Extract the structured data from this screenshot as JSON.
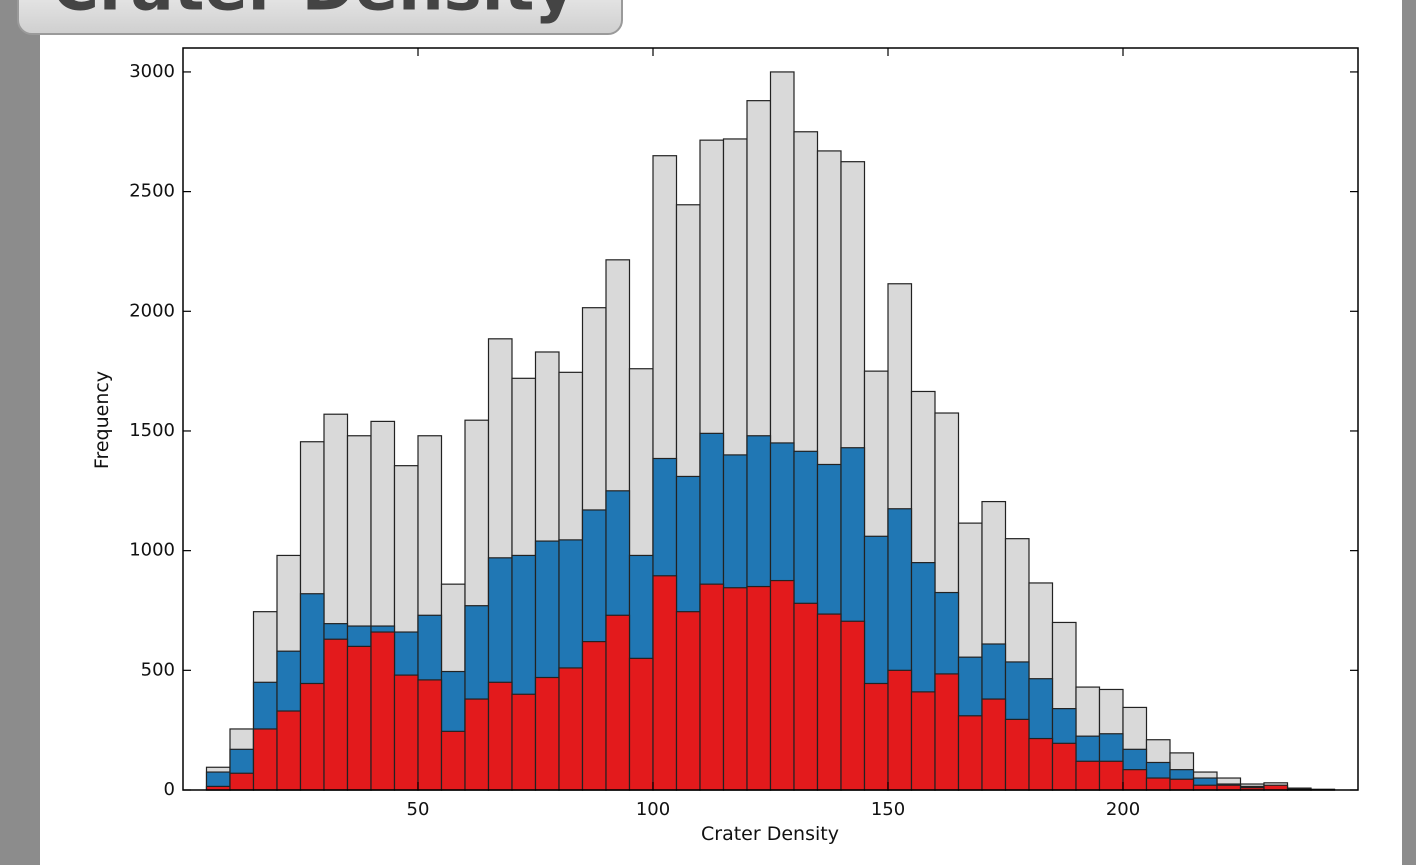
{
  "chart_data": {
    "type": "histogram",
    "title": "Crater Density",
    "xlabel": "Crater Density",
    "ylabel": "Frequency",
    "bins": [
      5,
      10,
      15,
      20,
      25,
      30,
      35,
      40,
      45,
      50,
      55,
      60,
      65,
      70,
      75,
      80,
      85,
      90,
      95,
      100,
      105,
      110,
      115,
      120,
      125,
      130,
      135,
      140,
      145,
      150,
      155,
      160,
      165,
      170,
      175,
      180,
      185,
      190,
      195,
      200,
      205,
      210,
      215,
      220,
      225,
      230,
      235,
      240,
      245
    ],
    "series": [
      {
        "color": "#d9d9d9",
        "values": [
          95,
          255,
          745,
          980,
          1455,
          1570,
          1480,
          1540,
          1355,
          1480,
          860,
          1545,
          1885,
          1720,
          1830,
          1745,
          2015,
          2215,
          1760,
          2650,
          2445,
          2715,
          2720,
          2880,
          3000,
          2750,
          2670,
          2625,
          1750,
          2115,
          1665,
          1575,
          1115,
          1205,
          1050,
          865,
          700,
          430,
          420,
          345,
          210,
          155,
          75,
          50,
          25,
          30,
          8,
          3
        ]
      },
      {
        "color": "#2077b4",
        "values": [
          75,
          170,
          450,
          580,
          820,
          695,
          685,
          685,
          660,
          730,
          495,
          770,
          970,
          980,
          1040,
          1045,
          1170,
          1250,
          980,
          1385,
          1310,
          1490,
          1400,
          1480,
          1450,
          1415,
          1360,
          1430,
          1060,
          1175,
          950,
          825,
          555,
          610,
          535,
          465,
          340,
          225,
          235,
          170,
          115,
          85,
          50,
          25,
          15,
          15,
          5,
          2
        ]
      },
      {
        "color": "#e31a1c",
        "values": [
          15,
          70,
          255,
          330,
          445,
          630,
          600,
          660,
          480,
          460,
          245,
          380,
          450,
          400,
          470,
          510,
          620,
          730,
          550,
          895,
          745,
          860,
          845,
          850,
          875,
          780,
          735,
          705,
          445,
          500,
          410,
          485,
          310,
          380,
          295,
          215,
          195,
          120,
          120,
          85,
          50,
          45,
          20,
          20,
          10,
          20,
          3,
          1
        ]
      }
    ],
    "xlim": [
      0,
      250
    ],
    "ylim": [
      0,
      3100
    ],
    "xticks": [
      50,
      100,
      150,
      200
    ],
    "yticks": [
      0,
      500,
      1000,
      1500,
      2000,
      2500,
      3000
    ]
  }
}
